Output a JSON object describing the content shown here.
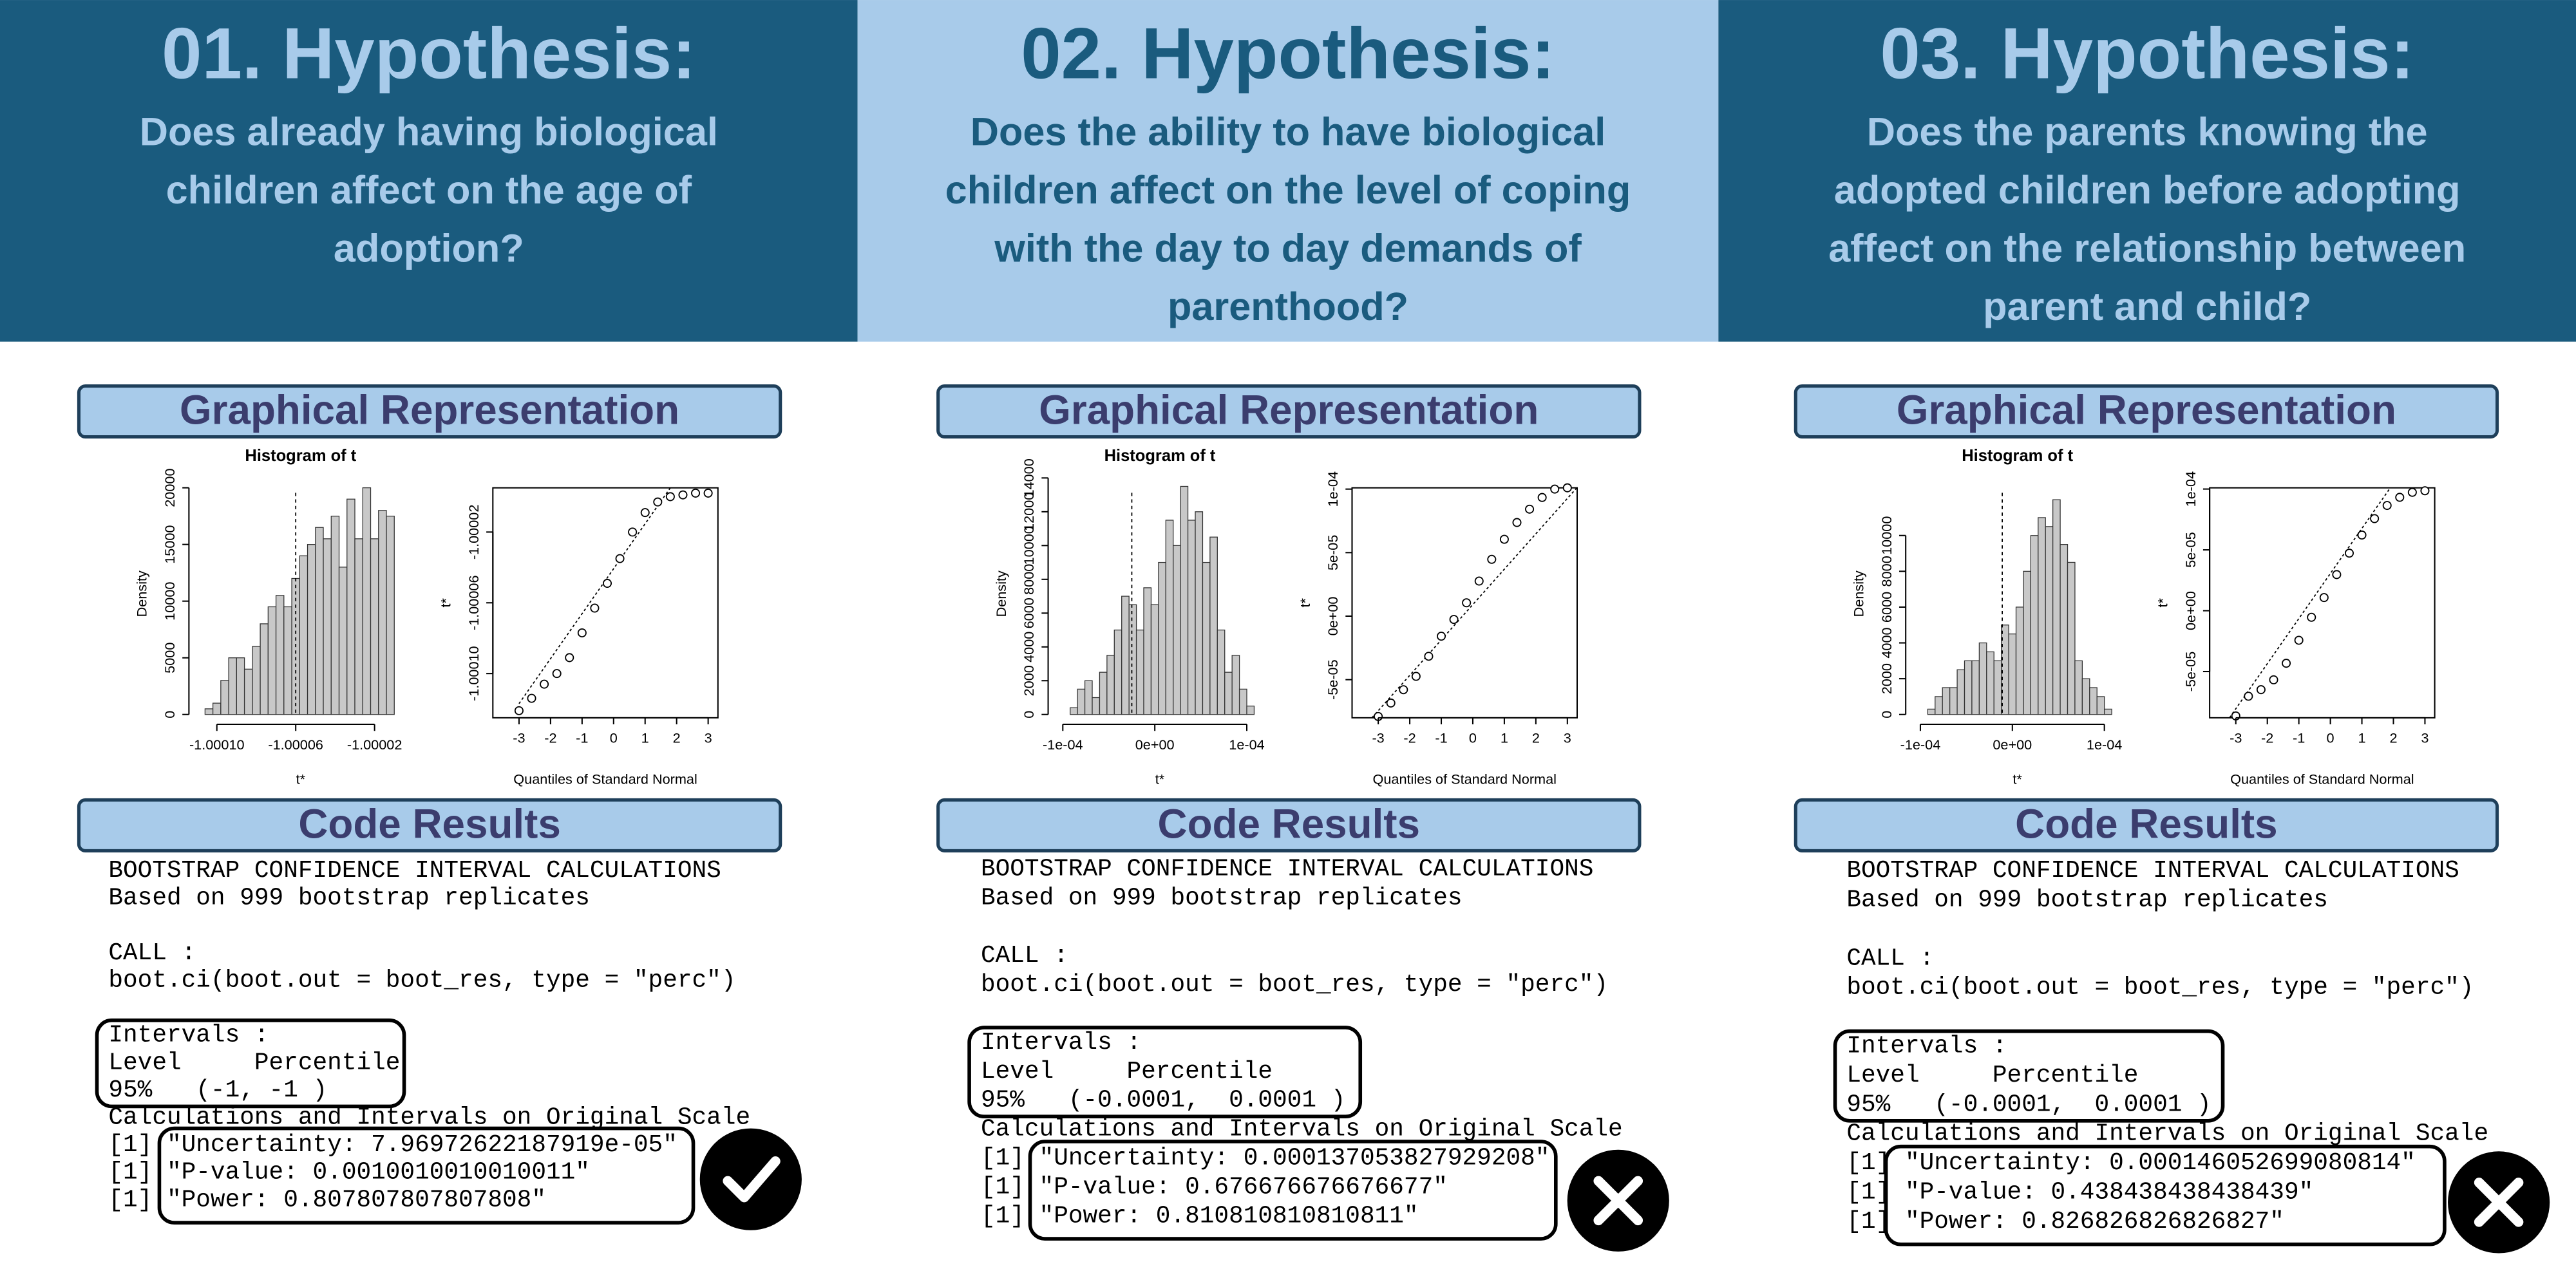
{
  "columns": [
    {
      "title": "01. Hypothesis:",
      "header_color": "#1a5b7e",
      "title_color": "#a8cbea",
      "question_lines": [
        "Does already having biological",
        "children affect on the age of",
        "adoption?"
      ],
      "graph_heading": "Graphical Representation",
      "histogram": {
        "type": "histogram",
        "title": "Histogram of t",
        "x_label": "t*",
        "y_label": "Density",
        "color": "#c8c8c8",
        "bins": [
          -1.000106,
          -1.000102,
          -1.000098,
          -1.000094,
          -1.00009,
          -1.000086,
          -1.000082,
          -1.000078,
          -1.000074,
          -1.00007,
          -1.000066,
          -1.000062,
          -1.000058,
          -1.000054,
          -1.00005,
          -1.000046,
          -1.000042,
          -1.000038,
          -1.000034,
          -1.00003,
          -1.000026,
          -1.000022,
          -1.000018,
          -1.000014,
          -1.00001
        ],
        "values": [
          500,
          1000,
          3000,
          5000,
          5000,
          4000,
          6000,
          8000,
          9500,
          10500,
          9500,
          12000,
          14000,
          15000,
          16500,
          15500,
          17500,
          13000,
          19000,
          15500,
          20000,
          15500,
          18000,
          17500
        ],
        "reference_line": -1.00006,
        "xlim": [
          -1.00011,
          -1.000005
        ],
        "xticks": [
          {
            "value": -1.0001,
            "label": "-1.00010"
          },
          -1.00006,
          -1.00002
        ],
        "ylim": [
          0,
          21300
        ],
        "yticks": [
          0,
          5000,
          10000,
          15000,
          20000
        ]
      },
      "qq_plot": {
        "type": "qq",
        "x_label": "Quantiles of Standard Normal",
        "y_label": "t*",
        "x": [
          -3,
          -2.6,
          -2.2,
          -1.8,
          -1.4,
          -1,
          -0.6,
          -0.2,
          0.2,
          0.6,
          1,
          1.4,
          1.8,
          2.2,
          2.6,
          3
        ],
        "y": [
          -1.000121,
          -1.000114,
          -1.000106,
          -1.0001,
          -1.000091,
          -1.000077,
          -1.000063,
          -1.000049,
          -1.000035,
          -1.00002,
          -1.000009,
          -1.000003,
          -1.0,
          -0.999999,
          -0.999998,
          -0.999998
        ],
        "reference_line": {
          "x": [
            -3,
            1.8
          ],
          "y": [
            -1.000117,
            -0.999995
          ]
        },
        "xlim": [
          -3.83,
          3.31
        ],
        "xticks": [
          -3,
          -2,
          -1,
          0,
          1,
          2,
          3
        ],
        "ylim": [
          -1.000125,
          -0.999995
        ],
        "yticks": [
          {
            "value": -1.0001,
            "label": "-1.00010"
          },
          -1.00006,
          -1.00002
        ]
      },
      "code_heading": "Code Results",
      "code": {
        "header_lines": [
          "BOOTSTRAP CONFIDENCE INTERVAL CALCULATIONS",
          "Based on 999 bootstrap replicates"
        ],
        "call_lines": [
          "CALL :",
          "boot.ci(boot.out = boot_res, type = \"perc\")"
        ],
        "interval_lines": [
          "Intervals :",
          "Level     Percentile",
          "95%   (-1, -1 )"
        ],
        "scale_line": "Calculations and Intervals on Original Scale",
        "result_lines": [
          "[1] \"Uncertainty: 7.96972622187919e-05\"",
          "[1] \"P-value: 0.0010010010010011\"",
          "[1] \"Power: 0.807807807807808\""
        ]
      },
      "icon": "check"
    },
    {
      "title": "02. Hypothesis:",
      "header_color": "#a8cbea",
      "title_color": "#1a5b7e",
      "question_lines": [
        "Does the ability to have biological",
        "children affect on the level of coping",
        "with the day to day demands of",
        "parenthood?"
      ],
      "graph_heading": "Graphical Representation",
      "histogram": {
        "type": "histogram",
        "title": "Histogram of t",
        "x_label": "t*",
        "y_label": "Density",
        "color": "#c8c8c8",
        "bins": [
          -9.2e-05,
          -8.4e-05,
          -7.6e-05,
          -6.8e-05,
          -6e-05,
          -5.2e-05,
          -4.4e-05,
          -3.6e-05,
          -2.8e-05,
          -2e-05,
          -1.2e-05,
          -4e-06,
          4e-06,
          1.2e-05,
          2e-05,
          2.8e-05,
          3.6e-05,
          4.4e-05,
          5.2e-05,
          6e-05,
          6.8e-05,
          7.6e-05,
          8.4e-05,
          9.2e-05,
          0.0001,
          0.000108
        ],
        "values": [
          400,
          1500,
          2000,
          1000,
          2500,
          3500,
          5000,
          7000,
          6500,
          5000,
          7500,
          6500,
          9000,
          11500,
          10000,
          13500,
          11500,
          12000,
          9000,
          10500,
          5000,
          2500,
          3500,
          1500,
          500
        ],
        "reference_line": -2.5e-05,
        "xlim": [
          -0.000107,
          0.000118
        ],
        "xticks": [
          {
            "value": -0.0001,
            "label": "-1e-04"
          },
          {
            "value": 0,
            "label": "0e+00"
          },
          {
            "value": 0.0001,
            "label": "1e-04"
          }
        ],
        "ylim": [
          0,
          14290
        ],
        "yticks": [
          0,
          2000,
          4000,
          6000,
          8000,
          10000,
          12000,
          14000
        ]
      },
      "qq_plot": {
        "type": "qq",
        "x_label": "Quantiles of Standard Normal",
        "y_label": "t*",
        "x": [
          -3,
          -2.6,
          -2.2,
          -1.8,
          -1.4,
          -1,
          -0.6,
          -0.2,
          0.2,
          0.6,
          1,
          1.4,
          1.8,
          2.2,
          2.6,
          3
        ],
        "y": [
          -7.9e-05,
          -6.84e-05,
          -5.79e-05,
          -4.74e-05,
          -3.16e-05,
          -1.58e-05,
          -2.6e-06,
          1.05e-05,
          2.76e-05,
          4.47e-05,
          6.05e-05,
          7.37e-05,
          8.42e-05,
          9.34e-05,
          0.0001,
          0.000101
        ],
        "reference_line": {
          "x": [
            -3.2,
            3.3
          ],
          "y": [
            -8e-05,
            0.000101
          ]
        },
        "xlim": [
          -3.83,
          3.31
        ],
        "xticks": [
          -3,
          -2,
          -1,
          0,
          1,
          2,
          3
        ],
        "ylim": [
          -8e-05,
          0.000101
        ],
        "yticks": [
          {
            "value": -5e-05,
            "label": "-5e-05"
          },
          {
            "value": 0,
            "label": "0e+00"
          },
          {
            "value": 5e-05,
            "label": "5e-05"
          },
          {
            "value": 0.0001,
            "label": "1e-04"
          }
        ]
      },
      "code_heading": "Code Results",
      "code": {
        "header_lines": [
          "BOOTSTRAP CONFIDENCE INTERVAL CALCULATIONS",
          "Based on 999 bootstrap replicates"
        ],
        "call_lines": [
          "CALL :",
          "boot.ci(boot.out = boot_res, type = \"perc\")"
        ],
        "interval_lines": [
          "Intervals :",
          "Level     Percentile",
          "95%   (-0.0001,  0.0001 )"
        ],
        "scale_line": "Calculations and Intervals on Original Scale",
        "result_lines": [
          "[1] \"Uncertainty: 0.000137053827929208\"",
          "[1] \"P-value: 0.676676676676677\"",
          "[1] \"Power: 0.810810810810811\""
        ]
      },
      "icon": "cross"
    },
    {
      "title": "03. Hypothesis:",
      "header_color": "#1a5b7e",
      "title_color": "#a8cbea",
      "question_lines": [
        "Does the parents knowing the",
        "adopted children before adopting",
        "affect on the relationship between",
        "parent and child?"
      ],
      "graph_heading": "Graphical Representation",
      "histogram": {
        "type": "histogram",
        "title": "Histogram of t",
        "x_label": "t*",
        "y_label": "Density",
        "color": "#c8c8c8",
        "bins": [
          -9.2e-05,
          -8.4e-05,
          -7.6e-05,
          -6.8e-05,
          -6e-05,
          -5.2e-05,
          -4.4e-05,
          -3.6e-05,
          -2.8e-05,
          -2e-05,
          -1.2e-05,
          -4e-06,
          4e-06,
          1.2e-05,
          2e-05,
          2.8e-05,
          3.6e-05,
          4.4e-05,
          5.2e-05,
          6e-05,
          6.8e-05,
          7.6e-05,
          8.4e-05,
          9.2e-05,
          0.0001,
          0.000108
        ],
        "values": [
          300,
          1000,
          1500,
          1500,
          2500,
          3000,
          3000,
          4000,
          3500,
          3000,
          5000,
          4500,
          6000,
          8000,
          10000,
          11000,
          10500,
          12000,
          9500,
          8500,
          3000,
          2000,
          1500,
          1000,
          300
        ],
        "reference_line": -1.1e-05,
        "xlim": [
          -0.000107,
          0.000118
        ],
        "xticks": [
          {
            "value": -0.0001,
            "label": "-1e-04"
          },
          {
            "value": 0,
            "label": "0e+00"
          },
          {
            "value": 0.0001,
            "label": "1e-04"
          }
        ],
        "ylim": [
          0,
          13490
        ],
        "yticks": [
          0,
          2000,
          4000,
          6000,
          8000,
          10000
        ]
      },
      "qq_plot": {
        "type": "qq",
        "x_label": "Quantiles of Standard Normal",
        "y_label": "t*",
        "x": [
          -3,
          -2.6,
          -2.2,
          -1.8,
          -1.4,
          -1,
          -0.6,
          -0.2,
          0.2,
          0.6,
          1,
          1.4,
          1.8,
          2.2,
          2.6,
          3
        ],
        "y": [
          -8.65e-05,
          -7.03e-05,
          -6.49e-05,
          -5.68e-05,
          -4.32e-05,
          -2.43e-05,
          -5.4e-06,
          1.08e-05,
          2.97e-05,
          4.73e-05,
          6.22e-05,
          7.57e-05,
          8.65e-05,
          9.32e-05,
          9.73e-05,
          9.86e-05
        ],
        "reference_line": {
          "x": [
            -3.2,
            1.9
          ],
          "y": [
            -8.8e-05,
            0.000101
          ]
        },
        "xlim": [
          -3.83,
          3.31
        ],
        "xticks": [
          -3,
          -2,
          -1,
          0,
          1,
          2,
          3
        ],
        "ylim": [
          -8.8e-05,
          0.000101
        ],
        "yticks": [
          {
            "value": -5e-05,
            "label": "-5e-05"
          },
          {
            "value": 0,
            "label": "0e+00"
          },
          {
            "value": 5e-05,
            "label": "5e-05"
          },
          {
            "value": 0.0001,
            "label": "1e-04"
          }
        ]
      },
      "code_heading": "Code Results",
      "code": {
        "header_lines": [
          "BOOTSTRAP CONFIDENCE INTERVAL CALCULATIONS",
          "Based on 999 bootstrap replicates"
        ],
        "call_lines": [
          "CALL :",
          "boot.ci(boot.out = boot_res, type = \"perc\")"
        ],
        "interval_lines": [
          "Intervals :",
          "Level     Percentile",
          "95%   (-0.0001,  0.0001 )"
        ],
        "scale_line": "Calculations and Intervals on Original Scale",
        "result_lines": [
          "[1] \"Uncertainty: 0.000146052699080814\"",
          "[1] \"P-value: 0.438438438438439\"",
          "[1] \"Power: 0.826826826826827\""
        ]
      },
      "icon": "cross"
    }
  ]
}
